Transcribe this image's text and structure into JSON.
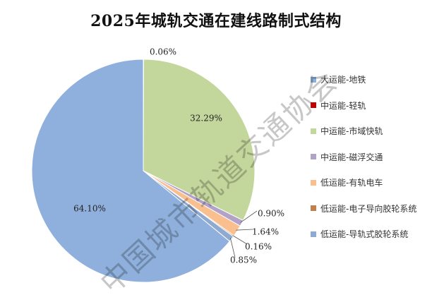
{
  "chart_data": {
    "type": "pie",
    "title": "2025年城轨交通在建线路制式结构",
    "categories": [
      "大运能-地铁",
      "中运能-轻轨",
      "中运能-市域快轨",
      "中运能-磁浮交通",
      "低运能-有轨电车",
      "低运能-电子导向胶轮系统",
      "低运能-导轨式胶轮系统"
    ],
    "values": [
      64.1,
      0.06,
      32.29,
      0.9,
      1.64,
      0.16,
      0.85
    ],
    "value_labels": [
      "64.10%",
      "0.06%",
      "32.29%",
      "0.90%",
      "1.64%",
      "0.16%",
      "0.85%"
    ],
    "colors": [
      "#8fb0dc",
      "#c00000",
      "#c3d69b",
      "#b3a2c7",
      "#f9bf8f",
      "#c0804f",
      "#8faad0"
    ],
    "legend_position": "right"
  },
  "watermark": "中国城市轨道交通协会"
}
